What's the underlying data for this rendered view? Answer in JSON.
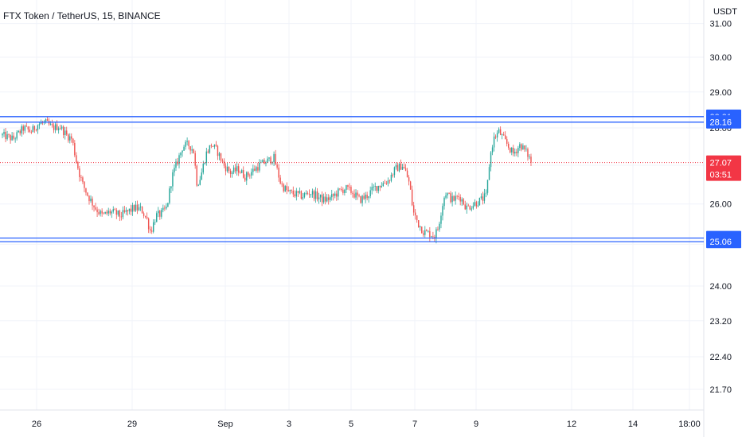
{
  "title": "FTX Token / TetherUS, 15, BINANCE",
  "currency": "USDT",
  "colors": {
    "up": "#26a69a",
    "down": "#ef5350",
    "level_line": "#2962ff",
    "level_badge": "#2962ff",
    "price_badge": "#f23645",
    "grid": "#f0f3fa",
    "axis_text": "#131722"
  },
  "chart_data": {
    "type": "candlestick",
    "log_scale": true,
    "grid": true,
    "price_tick_labels": [
      "31.00",
      "30.00",
      "29.00",
      "28.00",
      "27.00",
      "26.00",
      "25.00",
      "24.00",
      "23.20",
      "22.40",
      "21.70"
    ],
    "time_tick_labels": [
      "26",
      "29",
      "Sep",
      "3",
      "5",
      "7",
      "9",
      "12",
      "14",
      "18:00"
    ],
    "levels": [
      {
        "value": 28.31,
        "label": "28.31"
      },
      {
        "value": 28.16,
        "label": "28.16"
      },
      {
        "value": 25.15,
        "label": "25.15"
      },
      {
        "value": 25.06,
        "label": "25.06"
      }
    ],
    "last_price": {
      "value": 27.07,
      "label": "27.07",
      "countdown": "03:51"
    },
    "price_path": [
      [
        0,
        27.8
      ],
      [
        3,
        27.7
      ],
      [
        6,
        28.0
      ],
      [
        8,
        27.9
      ],
      [
        10,
        28.1
      ],
      [
        12,
        28.15
      ],
      [
        14,
        28.0
      ],
      [
        16,
        28.05
      ],
      [
        18,
        27.8
      ],
      [
        19.5,
        27.7
      ],
      [
        20.5,
        27.2
      ],
      [
        21.5,
        26.8
      ],
      [
        22.5,
        26.5
      ],
      [
        24,
        26.2
      ],
      [
        26,
        25.9
      ],
      [
        28,
        25.7
      ],
      [
        30,
        25.8
      ],
      [
        32,
        25.75
      ],
      [
        33,
        25.7
      ],
      [
        35,
        25.8
      ],
      [
        37,
        25.9
      ],
      [
        39,
        25.85
      ],
      [
        40.5,
        25.6
      ],
      [
        41.5,
        25.3
      ],
      [
        43,
        25.7
      ],
      [
        44.5,
        25.75
      ],
      [
        46,
        25.9
      ],
      [
        47.5,
        26.7
      ],
      [
        49,
        27.1
      ],
      [
        50.5,
        27.5
      ],
      [
        52,
        27.55
      ],
      [
        53.5,
        27.4
      ],
      [
        54.5,
        26.5
      ],
      [
        55.5,
        26.7
      ],
      [
        57,
        27.3
      ],
      [
        58.5,
        27.55
      ],
      [
        60,
        27.4
      ],
      [
        62,
        27.0
      ],
      [
        64,
        26.8
      ],
      [
        66,
        26.9
      ],
      [
        68,
        26.7
      ],
      [
        70,
        26.85
      ],
      [
        72,
        27.0
      ],
      [
        74,
        27.1
      ],
      [
        76,
        27.2
      ],
      [
        78,
        26.5
      ],
      [
        80,
        26.3
      ],
      [
        82,
        26.25
      ],
      [
        84,
        26.2
      ],
      [
        86,
        26.3
      ],
      [
        88,
        26.2
      ],
      [
        90,
        26.1
      ],
      [
        92,
        26.15
      ],
      [
        94,
        26.3
      ],
      [
        96,
        26.4
      ],
      [
        98,
        26.3
      ],
      [
        100,
        26.1
      ],
      [
        102,
        26.2
      ],
      [
        104,
        26.4
      ],
      [
        106,
        26.5
      ],
      [
        108,
        26.6
      ],
      [
        110,
        26.9
      ],
      [
        112,
        27.0
      ],
      [
        113,
        26.8
      ],
      [
        114,
        26.5
      ],
      [
        115,
        25.8
      ],
      [
        116.5,
        25.5
      ],
      [
        118,
        25.3
      ],
      [
        120,
        25.25
      ],
      [
        121,
        25.2
      ],
      [
        122,
        25.4
      ],
      [
        123,
        25.9
      ],
      [
        124,
        26.3
      ],
      [
        126,
        26.1
      ],
      [
        128,
        26.2
      ],
      [
        130,
        25.9
      ],
      [
        132,
        26.0
      ],
      [
        134,
        26.1
      ],
      [
        135.5,
        26.2
      ],
      [
        136.5,
        27.2
      ],
      [
        137.5,
        27.7
      ],
      [
        139,
        27.9
      ],
      [
        141,
        27.6
      ],
      [
        143,
        27.3
      ],
      [
        145,
        27.55
      ],
      [
        147,
        27.3
      ],
      [
        148,
        27.1
      ]
    ]
  }
}
